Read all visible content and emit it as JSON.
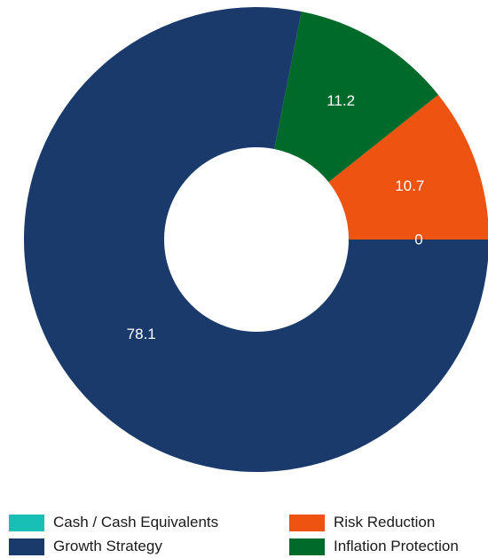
{
  "chart_data": {
    "type": "pie",
    "donut": true,
    "categories": [
      "Cash / Cash Equivalents",
      "Risk Reduction",
      "Inflation Protection",
      "Growth Strategy"
    ],
    "values": [
      0,
      10.7,
      11.2,
      78.1
    ],
    "data_labels": [
      "0",
      "10.7",
      "11.2",
      "78.1"
    ],
    "colors": [
      "#17bfb4",
      "#ee5311",
      "#006a2a",
      "#1a3a6b"
    ],
    "legend_position": "bottom",
    "legend": [
      {
        "label": "Cash / Cash Equivalents",
        "color": "#17bfb4"
      },
      {
        "label": "Risk Reduction",
        "color": "#ee5311"
      },
      {
        "label": "Growth Strategy",
        "color": "#1a3a6b"
      },
      {
        "label": "Inflation Protection",
        "color": "#006a2a"
      }
    ]
  }
}
